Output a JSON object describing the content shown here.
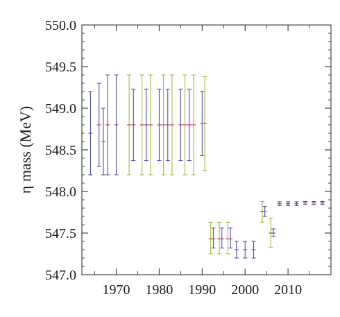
{
  "chart_data": {
    "type": "scatter",
    "title": "",
    "xlabel": "",
    "ylabel": "η mass (MeV)",
    "xlim": [
      1962,
      2020
    ],
    "ylim": [
      547.0,
      550.0
    ],
    "x_ticks": [
      1970,
      1980,
      1990,
      2000,
      2010
    ],
    "x_tick_labels": [
      "1970",
      "1980",
      "1990",
      "2000",
      "2010"
    ],
    "y_ticks": [
      547.0,
      547.5,
      548.0,
      548.5,
      549.0,
      549.5,
      550.0
    ],
    "y_tick_labels": [
      "547.0",
      "547.5",
      "548.0",
      "548.5",
      "549.0",
      "549.5",
      "550.0"
    ],
    "grid": false,
    "colors": {
      "blue": "#3a3ea8",
      "olive": "#a6b030",
      "center": "#c0395a",
      "axis": "#222222"
    },
    "points": [
      {
        "x": 1964,
        "y": 548.7,
        "lo": 548.2,
        "hi": 549.2,
        "color": "blue"
      },
      {
        "x": 1966,
        "y": 548.8,
        "lo": 548.3,
        "hi": 549.3,
        "color": "blue"
      },
      {
        "x": 1967,
        "y": 548.6,
        "lo": 548.2,
        "hi": 549.0,
        "color": "blue"
      },
      {
        "x": 1968,
        "y": 548.8,
        "lo": 548.2,
        "hi": 549.4,
        "color": "blue"
      },
      {
        "x": 1970,
        "y": 548.8,
        "lo": 548.2,
        "hi": 549.4,
        "color": "blue"
      },
      {
        "x": 1973,
        "y": 548.8,
        "lo": 548.2,
        "hi": 549.4,
        "color": "olive"
      },
      {
        "x": 1974,
        "y": 548.8,
        "lo": 548.37,
        "hi": 549.23,
        "color": "blue"
      },
      {
        "x": 1976,
        "y": 548.8,
        "lo": 548.2,
        "hi": 549.4,
        "color": "olive"
      },
      {
        "x": 1977,
        "y": 548.8,
        "lo": 548.37,
        "hi": 549.23,
        "color": "blue"
      },
      {
        "x": 1978,
        "y": 548.8,
        "lo": 548.2,
        "hi": 549.4,
        "color": "olive"
      },
      {
        "x": 1980,
        "y": 548.8,
        "lo": 548.37,
        "hi": 549.23,
        "color": "blue"
      },
      {
        "x": 1981,
        "y": 548.8,
        "lo": 548.2,
        "hi": 549.4,
        "color": "olive"
      },
      {
        "x": 1982,
        "y": 548.8,
        "lo": 548.37,
        "hi": 549.23,
        "color": "blue"
      },
      {
        "x": 1983,
        "y": 548.8,
        "lo": 548.2,
        "hi": 549.4,
        "color": "olive"
      },
      {
        "x": 1985,
        "y": 548.8,
        "lo": 548.37,
        "hi": 549.23,
        "color": "blue"
      },
      {
        "x": 1986,
        "y": 548.8,
        "lo": 548.2,
        "hi": 549.4,
        "color": "olive"
      },
      {
        "x": 1987,
        "y": 548.8,
        "lo": 548.37,
        "hi": 549.23,
        "color": "blue"
      },
      {
        "x": 1988,
        "y": 548.8,
        "lo": 548.2,
        "hi": 549.4,
        "color": "olive"
      },
      {
        "x": 1990,
        "y": 548.82,
        "lo": 548.43,
        "hi": 549.2,
        "color": "blue"
      },
      {
        "x": 1990.6,
        "y": 548.82,
        "lo": 548.25,
        "hi": 549.38,
        "color": "olive"
      },
      {
        "x": 1992,
        "y": 547.43,
        "lo": 547.25,
        "hi": 547.63,
        "color": "olive"
      },
      {
        "x": 1992.6,
        "y": 547.43,
        "lo": 547.32,
        "hi": 547.56,
        "color": "blue"
      },
      {
        "x": 1994,
        "y": 547.43,
        "lo": 547.25,
        "hi": 547.63,
        "color": "olive"
      },
      {
        "x": 1994.6,
        "y": 547.43,
        "lo": 547.32,
        "hi": 547.56,
        "color": "blue"
      },
      {
        "x": 1996,
        "y": 547.43,
        "lo": 547.25,
        "hi": 547.63,
        "color": "olive"
      },
      {
        "x": 1996.6,
        "y": 547.43,
        "lo": 547.32,
        "hi": 547.56,
        "color": "blue"
      },
      {
        "x": 1998,
        "y": 547.3,
        "lo": 547.2,
        "hi": 547.4,
        "color": "blue"
      },
      {
        "x": 2000,
        "y": 547.3,
        "lo": 547.2,
        "hi": 547.4,
        "color": "blue"
      },
      {
        "x": 2002,
        "y": 547.3,
        "lo": 547.2,
        "hi": 547.4,
        "color": "blue"
      },
      {
        "x": 2004,
        "y": 547.76,
        "lo": 547.63,
        "hi": 547.88,
        "color": "olive"
      },
      {
        "x": 2004.6,
        "y": 547.76,
        "lo": 547.7,
        "hi": 547.82,
        "color": "blue"
      },
      {
        "x": 2006,
        "y": 547.5,
        "lo": 547.33,
        "hi": 547.68,
        "color": "olive"
      },
      {
        "x": 2006.6,
        "y": 547.5,
        "lo": 547.46,
        "hi": 547.55,
        "color": "blue"
      },
      {
        "x": 2008,
        "y": 547.853,
        "lo": 547.83,
        "hi": 547.876,
        "color": "blue"
      },
      {
        "x": 2010,
        "y": 547.853,
        "lo": 547.83,
        "hi": 547.876,
        "color": "blue"
      },
      {
        "x": 2012,
        "y": 547.853,
        "lo": 547.83,
        "hi": 547.876,
        "color": "blue"
      },
      {
        "x": 2014,
        "y": 547.862,
        "lo": 547.845,
        "hi": 547.879,
        "color": "blue"
      },
      {
        "x": 2016,
        "y": 547.862,
        "lo": 547.845,
        "hi": 547.879,
        "color": "blue"
      },
      {
        "x": 2018,
        "y": 547.862,
        "lo": 547.845,
        "hi": 547.879,
        "color": "blue"
      }
    ]
  }
}
